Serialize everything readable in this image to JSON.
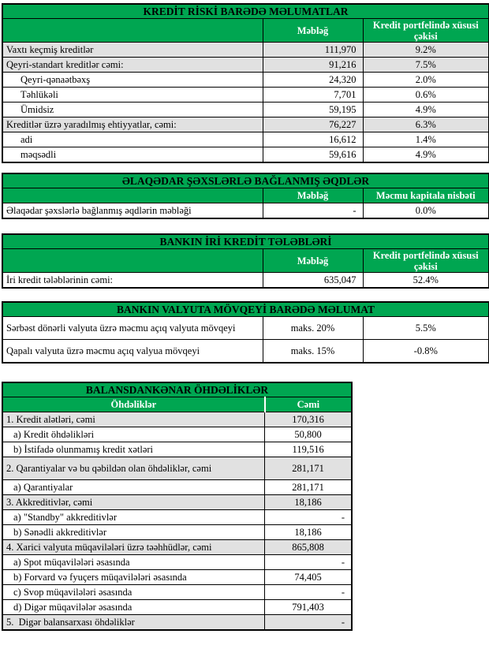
{
  "colors": {
    "header_green": "#00A651",
    "row_shade_gray": "#E1E1E1",
    "header_text_white": "#FFFFFF",
    "title_text_black": "#000000",
    "border_black": "#000000"
  },
  "tables": {
    "credit_risk": {
      "title": "KREDİT RİSKİ BARƏDƏ MƏLUMATLAR",
      "col_amount": "Məbləğ",
      "col_share": "Kredit portfelində xüsusi çəkisi",
      "rows": [
        {
          "label": "Vaxtı keçmiş kreditlər",
          "amount": "111,970",
          "share": "9.2%",
          "shade": true,
          "indent": false
        },
        {
          "label": "Qeyri-standart kreditlər cəmi:",
          "amount": "91,216",
          "share": "7.5%",
          "shade": true,
          "indent": false
        },
        {
          "label": "Qeyri-qənaətbəxş",
          "amount": "24,320",
          "share": "2.0%",
          "shade": false,
          "indent": true
        },
        {
          "label": "Təhlükəli",
          "amount": "7,701",
          "share": "0.6%",
          "shade": false,
          "indent": true
        },
        {
          "label": "Ümidsiz",
          "amount": "59,195",
          "share": "4.9%",
          "shade": false,
          "indent": true
        },
        {
          "label": "Kreditlər üzrə yaradılmış ehtiyyatlar, cəmi:",
          "amount": "76,227",
          "share": "6.3%",
          "shade": true,
          "indent": false
        },
        {
          "label": "adi",
          "amount": "16,612",
          "share": "1.4%",
          "shade": false,
          "indent": true
        },
        {
          "label": "məqsədli",
          "amount": "59,616",
          "share": "4.9%",
          "shade": false,
          "indent": true
        }
      ]
    },
    "related_party": {
      "title": "ƏLAQƏDAR ŞƏXSLƏRLƏ BAĞLANMIŞ ƏQDLƏR",
      "col_amount": "Məbləğ",
      "col_share": "Məcmu kapitala nisbəti",
      "rows": [
        {
          "label": "Əlaqədar şəxslərlə bağlanmış əqdlərin məbləği",
          "amount": "-",
          "share": "0.0%",
          "shade": false,
          "indent": false
        }
      ]
    },
    "large_credits": {
      "title": "BANKIN İRİ KREDİT TƏLƏBLƏRİ",
      "col_amount": "Məbləğ",
      "col_share": "Kredit portfelində xüsusi çəkisi",
      "rows": [
        {
          "label": "İri kredit tələblərinin cəmi:",
          "amount": "635,047",
          "share": "52.4%",
          "shade": false,
          "indent": false
        }
      ]
    },
    "currency_position": {
      "title": "BANKIN VALYUTA MÖVQEYİ BARƏDƏ MƏLUMAT",
      "rows": [
        {
          "label": "Sərbəst dönərli valyuta üzrə məcmu açıq valyuta mövqeyi",
          "limit": "maks. 20%",
          "value": "5.5%"
        },
        {
          "label": "Qapalı valyuta üzrə məcmu açıq valyua mövqeyi",
          "limit": "maks. 15%",
          "value": "-0.8%"
        }
      ]
    },
    "off_balance": {
      "title": "BALANSDANKƏNAR ÖHDƏLİKLƏR",
      "col_label": "Öhdəliklər",
      "col_total": "Cəmi",
      "rows": [
        {
          "label": "1. Kredit alətləri, cəmi",
          "value": "170,316",
          "shade": true,
          "indent": false,
          "tall": false
        },
        {
          "label": "a) Kredit öhdəlikləri",
          "value": "50,800",
          "shade": false,
          "indent": true,
          "tall": false
        },
        {
          "label": "b) İstifadə olunmamış kredit xətləri",
          "value": "119,516",
          "shade": false,
          "indent": true,
          "tall": false
        },
        {
          "label": "2. Qarantiyalar və bu qəbildən olan öhdəliklər, cəmi",
          "value": "281,171",
          "shade": true,
          "indent": false,
          "tall": true
        },
        {
          "label": "a) Qarantiyalar",
          "value": "281,171",
          "shade": false,
          "indent": true,
          "tall": false
        },
        {
          "label": "3. Akkreditivlər, cəmi",
          "value": "18,186",
          "shade": true,
          "indent": false,
          "tall": false
        },
        {
          "label": "a) \"Standby\" akkreditivlər",
          "value": "-",
          "shade": false,
          "indent": true,
          "tall": false
        },
        {
          "label": "b) Sənədli akkreditivlər",
          "value": "18,186",
          "shade": false,
          "indent": true,
          "tall": false
        },
        {
          "label": "4. Xarici valyuta müqavilələri üzrə təəhhüdlər, cəmi",
          "value": "865,808",
          "shade": true,
          "indent": false,
          "tall": false
        },
        {
          "label": "a) Spot müqavilələri əsasında",
          "value": "-",
          "shade": false,
          "indent": true,
          "tall": false
        },
        {
          "label": "b) Forvard və fyuçers müqavilələri əsasında",
          "value": "74,405",
          "shade": false,
          "indent": true,
          "tall": false
        },
        {
          "label": "c) Svop müqavilələri əsasında",
          "value": "-",
          "shade": false,
          "indent": true,
          "tall": false
        },
        {
          "label": "d) Digər müqavilələr əsasında",
          "value": "791,403",
          "shade": false,
          "indent": true,
          "tall": false
        },
        {
          "label": "5.  Digər balansarxası öhdəliklər",
          "value": "-",
          "shade": true,
          "indent": false,
          "tall": false
        }
      ]
    }
  }
}
